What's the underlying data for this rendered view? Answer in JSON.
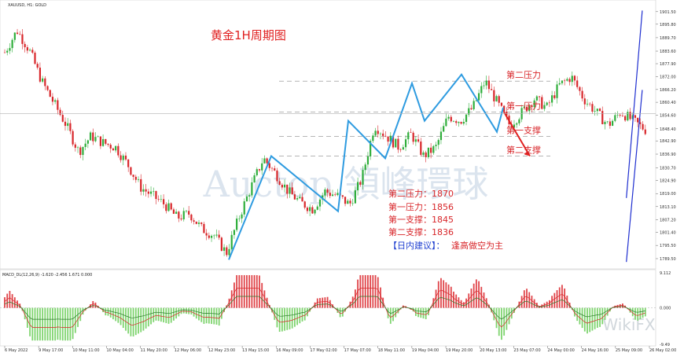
{
  "header": {
    "symbol_text": "XAUUSD, H1:  GOLD"
  },
  "macd_header": {
    "text": "MACD_DL(12,26,9) -1.620 -2.456 1.671 0.000"
  },
  "chart_data": {
    "type": "candlestick",
    "title": "黄金1H周期图",
    "price_axis": {
      "range": [
        1787,
        1905
      ],
      "labels": [
        "1901.50",
        "1895.80",
        "1889.70",
        "1883.60",
        "1877.90",
        "1872.00",
        "1866.20",
        "1860.40",
        "1854.60",
        "1848.40",
        "1842.90",
        "1836.90",
        "1830.70",
        "1824.90",
        "1819.00",
        "1813.10",
        "1807.20",
        "1801.40",
        "1795.50",
        "1789.50"
      ]
    },
    "current_price": 1855.3,
    "time_axis": {
      "labels": [
        "6 May 2022",
        "9 May 17:00",
        "10 May 11:00",
        "10 May 04:00",
        "11 May 20:00",
        "12 May 06:00",
        "12 May 23:00",
        "13 May 15:00",
        "16 May 09:00",
        "17 May 02:00",
        "17 May 07:00",
        "18 May 11:00",
        "19 May 04:00",
        "19 May 20:00",
        "20 May 13:00",
        "23 May 07:00",
        "24 May 00:00",
        "24 May 16:00",
        "25 May 09:00",
        "26 May 02:00"
      ]
    },
    "price_path": [
      1883,
      1893,
      1884,
      1870,
      1860,
      1850,
      1838,
      1845,
      1842,
      1840,
      1832,
      1822,
      1818,
      1814,
      1808,
      1810,
      1803,
      1800,
      1792,
      1808,
      1822,
      1835,
      1828,
      1820,
      1815,
      1812,
      1820,
      1818,
      1814,
      1826,
      1850,
      1845,
      1840,
      1846,
      1836,
      1840,
      1854,
      1852,
      1858,
      1870,
      1860,
      1850,
      1856,
      1862,
      1858,
      1868,
      1872,
      1862,
      1856,
      1850,
      1856,
      1852,
      1848
    ],
    "channel": {
      "upper": [
        [
          1814.6,
          1817
        ],
        [
          1860.9,
          1902
        ]
      ],
      "lower": [
        [
          1814.6,
          1788
        ],
        [
          1860.9,
          1866
        ]
      ]
    },
    "levels": [
      {
        "name": "第二压力",
        "value": 1870
      },
      {
        "name": "第一压力",
        "value": 1856
      },
      {
        "name": "第一支撑",
        "value": 1845
      },
      {
        "name": "第二支撑",
        "value": 1836
      }
    ],
    "support_resistance_text": [
      "第二压力：1870",
      "第一压力：1856",
      "第一支撑：1845",
      "第二支撑：1836"
    ],
    "advice": {
      "label": "【日内建议】：",
      "text": "逢高做空为主"
    },
    "macd": {
      "range": [
        -9.49,
        9.11
      ],
      "labels": [
        "9.112",
        "0.000",
        "-9.49"
      ]
    }
  },
  "watermark": {
    "brand": "WikiFX",
    "text": "Auctop 領峰環球"
  }
}
